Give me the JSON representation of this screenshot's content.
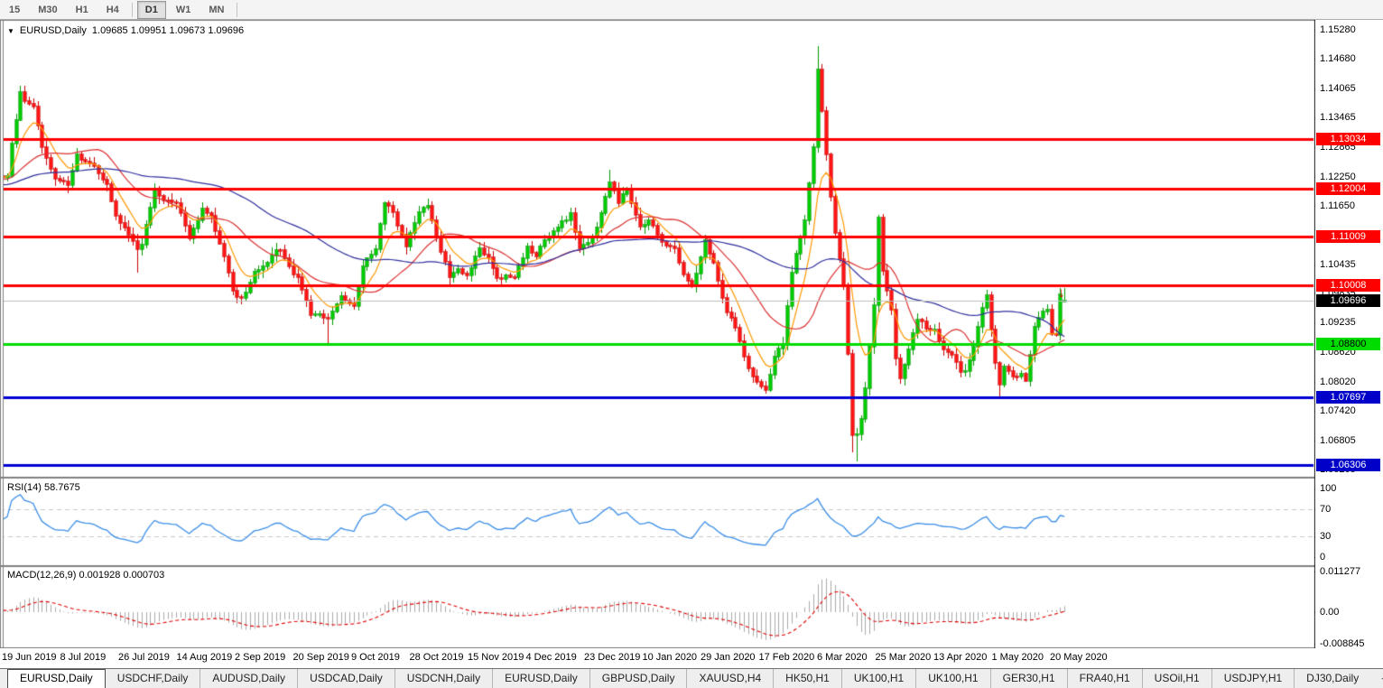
{
  "toolbar": {
    "timeframes": [
      {
        "label": "15",
        "active": false,
        "sep_after": false
      },
      {
        "label": "M30",
        "active": false,
        "sep_after": false
      },
      {
        "label": "H1",
        "active": false,
        "sep_after": false
      },
      {
        "label": "H4",
        "active": false,
        "sep_after": true
      },
      {
        "label": "D1",
        "active": true,
        "sep_after": false
      },
      {
        "label": "W1",
        "active": false,
        "sep_after": false
      },
      {
        "label": "MN",
        "active": false,
        "sep_after": true
      }
    ]
  },
  "chart_header": {
    "title": "EURUSD,Daily",
    "ohlc": "1.09685 1.09951 1.09673 1.09696"
  },
  "marker": {
    "glyph": "↓"
  },
  "indicators": {
    "rsi": {
      "label": "RSI(14) 58.7675",
      "ticks": [
        {
          "label": "100",
          "value": 100
        },
        {
          "label": "70",
          "value": 70
        },
        {
          "label": "30",
          "value": 30
        },
        {
          "label": "0",
          "value": 0
        }
      ]
    },
    "macd": {
      "label": "MACD(12,26,9) 0.001928 0.000703",
      "ticks": [
        {
          "label": "0.011277",
          "value": 0.011277
        },
        {
          "label": "0.00",
          "value": 0
        },
        {
          "label": "-0.008845",
          "value": -0.008845
        }
      ]
    }
  },
  "price_axis": {
    "ticks": [
      {
        "label": "1.15280",
        "price": 1.1528
      },
      {
        "label": "1.14680",
        "price": 1.1468
      },
      {
        "label": "1.14065",
        "price": 1.14065
      },
      {
        "label": "1.13465",
        "price": 1.13465
      },
      {
        "label": "1.12865",
        "price": 1.12865
      },
      {
        "label": "1.12250",
        "price": 1.1225
      },
      {
        "label": "1.11650",
        "price": 1.1165
      },
      {
        "label": "1.10435",
        "price": 1.10435
      },
      {
        "label": "1.09835",
        "price": 1.09835
      },
      {
        "label": "1.09235",
        "price": 1.09235
      },
      {
        "label": "1.08620",
        "price": 1.0862
      },
      {
        "label": "1.08020",
        "price": 1.0802
      },
      {
        "label": "1.07420",
        "price": 1.0742
      },
      {
        "label": "1.06805",
        "price": 1.06805
      },
      {
        "label": "1.06205",
        "price": 1.06205
      }
    ],
    "level_labels": [
      {
        "label": "1.13034",
        "price": 1.13034,
        "bg": "#ff0000",
        "fg": "#ffffff"
      },
      {
        "label": "1.12004",
        "price": 1.12004,
        "bg": "#ff0000",
        "fg": "#ffffff"
      },
      {
        "label": "1.11009",
        "price": 1.11009,
        "bg": "#ff0000",
        "fg": "#ffffff"
      },
      {
        "label": "1.10008",
        "price": 1.10008,
        "bg": "#ff0000",
        "fg": "#ffffff"
      },
      {
        "label": "1.09696",
        "price": 1.09696,
        "bg": "#000000",
        "fg": "#ffffff"
      },
      {
        "label": "1.08800",
        "price": 1.088,
        "bg": "#00dc00",
        "fg": "#000000"
      },
      {
        "label": "1.07697",
        "price": 1.07697,
        "bg": "#0000c8",
        "fg": "#ffffff"
      },
      {
        "label": "1.06306",
        "price": 1.06306,
        "bg": "#0000c8",
        "fg": "#ffffff"
      }
    ]
  },
  "date_axis": [
    "19 Jun 2019",
    "8 Jul 2019",
    "26 Jul 2019",
    "14 Aug 2019",
    "2 Sep 2019",
    "20 Sep 2019",
    "9 Oct 2019",
    "28 Oct 2019",
    "15 Nov 2019",
    "4 Dec 2019",
    "23 Dec 2019",
    "10 Jan 2020",
    "29 Jan 2020",
    "17 Feb 2020",
    "6 Mar 2020",
    "25 Mar 2020",
    "13 Apr 2020",
    "1 May 2020",
    "20 May 2020"
  ],
  "tabs": {
    "items": [
      {
        "label": "EURUSD,Daily",
        "active": true
      },
      {
        "label": "USDCHF,Daily",
        "active": false
      },
      {
        "label": "AUDUSD,Daily",
        "active": false
      },
      {
        "label": "USDCAD,Daily",
        "active": false
      },
      {
        "label": "USDCNH,Daily",
        "active": false
      },
      {
        "label": "EURUSD,Daily",
        "active": false
      },
      {
        "label": "GBPUSD,Daily",
        "active": false
      },
      {
        "label": "XAUUSD,H4",
        "active": false
      },
      {
        "label": "HK50,H1",
        "active": false
      },
      {
        "label": "UK100,H1",
        "active": false
      },
      {
        "label": "UK100,H1",
        "active": false
      },
      {
        "label": "GER30,H1",
        "active": false
      },
      {
        "label": "FRA40,H1",
        "active": false
      },
      {
        "label": "USOil,H1",
        "active": false
      },
      {
        "label": "USDJPY,H1",
        "active": false
      },
      {
        "label": "DJ30,Daily",
        "active": false
      }
    ],
    "nav": [
      {
        "glyph": "◂"
      },
      {
        "glyph": "▸"
      }
    ]
  },
  "chart_data": {
    "type": "candlestick",
    "symbol": "EURUSD",
    "timeframe": "Daily",
    "last_bar": {
      "open": 1.09685,
      "high": 1.09951,
      "low": 1.09673,
      "close": 1.09696
    },
    "rsi_current": 58.7675,
    "macd_current": {
      "main": 0.001928,
      "signal": 0.000703
    },
    "levels": [
      {
        "price": 1.13034,
        "color": "#ff0000"
      },
      {
        "price": 1.12004,
        "color": "#ff0000"
      },
      {
        "price": 1.11009,
        "color": "#ff0000"
      },
      {
        "price": 1.10008,
        "color": "#ff0000"
      },
      {
        "price": 1.088,
        "color": "#00dc00"
      },
      {
        "price": 1.07697,
        "color": "#0000d2"
      },
      {
        "price": 1.06306,
        "color": "#0000d2"
      }
    ],
    "current_price_line": {
      "price": 1.09696,
      "color": "#bebebe"
    },
    "moving_averages": [
      {
        "period": 8,
        "method": "ema",
        "color": "#ff9900"
      },
      {
        "period": 21,
        "method": "sma",
        "color": "#dc3232"
      },
      {
        "period": 55,
        "method": "sma",
        "color": "#2f2f9e"
      }
    ],
    "rsi_levels": [
      70,
      30
    ],
    "style": {
      "bull": "#00cc00",
      "bull_edge": "#009900",
      "bear": "#ff1414",
      "bear_edge": "#cc0000",
      "rsi_line": "#3b8ee8",
      "macd_hist": "#aaaaaa",
      "macd_signal": "#e00000",
      "grid_dash": "#c8c8c8"
    },
    "keypoints": [
      [
        0,
        1.1227
      ],
      [
        1,
        1.1294
      ],
      [
        3,
        1.1399
      ],
      [
        4,
        1.138
      ],
      [
        6,
        1.1369
      ],
      [
        8,
        1.1285
      ],
      [
        11,
        1.1221
      ],
      [
        14,
        1.1208
      ],
      [
        16,
        1.127
      ],
      [
        19,
        1.1253
      ],
      [
        23,
        1.121
      ],
      [
        25,
        1.1145
      ],
      [
        30,
        1.1075
      ],
      [
        31,
        1.1085
      ],
      [
        34,
        1.12
      ],
      [
        36,
        1.1176
      ],
      [
        39,
        1.117
      ],
      [
        42,
        1.1098
      ],
      [
        45,
        1.116
      ],
      [
        47,
        1.1145
      ],
      [
        50,
        1.106
      ],
      [
        52,
        1.099
      ],
      [
        54,
        1.0974
      ],
      [
        57,
        1.1028
      ],
      [
        59,
        1.104
      ],
      [
        61,
        1.1063
      ],
      [
        63,
        1.1073
      ],
      [
        65,
        1.104
      ],
      [
        67,
        1.1017
      ],
      [
        70,
        1.094
      ],
      [
        72,
        1.0941
      ],
      [
        74,
        1.0932
      ],
      [
        77,
        1.0979
      ],
      [
        80,
        1.0957
      ],
      [
        82,
        1.104
      ],
      [
        85,
        1.1075
      ],
      [
        87,
        1.117
      ],
      [
        89,
        1.1152
      ],
      [
        92,
        1.108
      ],
      [
        95,
        1.1152
      ],
      [
        97,
        1.1165
      ],
      [
        100,
        1.107
      ],
      [
        102,
        1.1018
      ],
      [
        104,
        1.1035
      ],
      [
        106,
        1.1021
      ],
      [
        109,
        1.1077
      ],
      [
        111,
        1.1058
      ],
      [
        113,
        1.1015
      ],
      [
        115,
        1.1022
      ],
      [
        117,
        1.1018
      ],
      [
        120,
        1.108
      ],
      [
        122,
        1.106
      ],
      [
        124,
        1.1093
      ],
      [
        127,
        1.112
      ],
      [
        130,
        1.1149
      ],
      [
        132,
        1.1078
      ],
      [
        134,
        1.1088
      ],
      [
        136,
        1.112
      ],
      [
        139,
        1.1213
      ],
      [
        141,
        1.1171
      ],
      [
        143,
        1.1196
      ],
      [
        146,
        1.1122
      ],
      [
        148,
        1.1135
      ],
      [
        151,
        1.109
      ],
      [
        154,
        1.1078
      ],
      [
        156,
        1.1024
      ],
      [
        158,
        1.1
      ],
      [
        161,
        1.1093
      ],
      [
        163,
        1.1047
      ],
      [
        166,
        1.0945
      ],
      [
        168,
        1.0913
      ],
      [
        171,
        1.083
      ],
      [
        174,
        1.0792
      ],
      [
        175,
        1.0785
      ],
      [
        177,
        1.0853
      ],
      [
        179,
        1.088
      ],
      [
        181,
        1.1026
      ],
      [
        184,
        1.1134
      ],
      [
        186,
        1.1285
      ],
      [
        187,
        1.1446
      ],
      [
        188,
        1.136
      ],
      [
        189,
        1.1271
      ],
      [
        190,
        1.1184
      ],
      [
        191,
        1.1108
      ],
      [
        193,
        1.0998
      ],
      [
        194,
        1.086
      ],
      [
        195,
        1.0692
      ],
      [
        196,
        1.0694
      ],
      [
        197,
        1.0725
      ],
      [
        198,
        1.0788
      ],
      [
        200,
        1.096
      ],
      [
        201,
        1.1141
      ],
      [
        202,
        1.1031
      ],
      [
        204,
        1.095
      ],
      [
        205,
        1.085
      ],
      [
        206,
        1.0808
      ],
      [
        208,
        1.0868
      ],
      [
        210,
        1.093
      ],
      [
        212,
        1.0911
      ],
      [
        214,
        1.091
      ],
      [
        216,
        1.0868
      ],
      [
        218,
        1.0857
      ],
      [
        220,
        1.0821
      ],
      [
        221,
        1.0823
      ],
      [
        223,
        1.0875
      ],
      [
        225,
        1.0955
      ],
      [
        226,
        1.098
      ],
      [
        228,
        1.084
      ],
      [
        229,
        1.0795
      ],
      [
        230,
        1.0834
      ],
      [
        232,
        1.0813
      ],
      [
        234,
        1.0818
      ],
      [
        235,
        1.0804
      ],
      [
        237,
        1.0916
      ],
      [
        239,
        1.0946
      ],
      [
        240,
        1.095
      ],
      [
        241,
        1.09
      ],
      [
        242,
        1.0898
      ],
      [
        243,
        1.0982
      ],
      [
        244,
        1.097
      ]
    ],
    "extremes": {
      "3": {
        "h": 1.1412
      },
      "30": {
        "l": 1.1027
      },
      "74": {
        "l": 1.0879
      },
      "139": {
        "h": 1.1239
      },
      "175": {
        "l": 1.0778
      },
      "187": {
        "h": 1.1495
      },
      "195": {
        "l": 1.0656
      },
      "196": {
        "l": 1.0636
      },
      "201": {
        "h": 1.1147
      },
      "229": {
        "l": 1.0766
      }
    }
  }
}
